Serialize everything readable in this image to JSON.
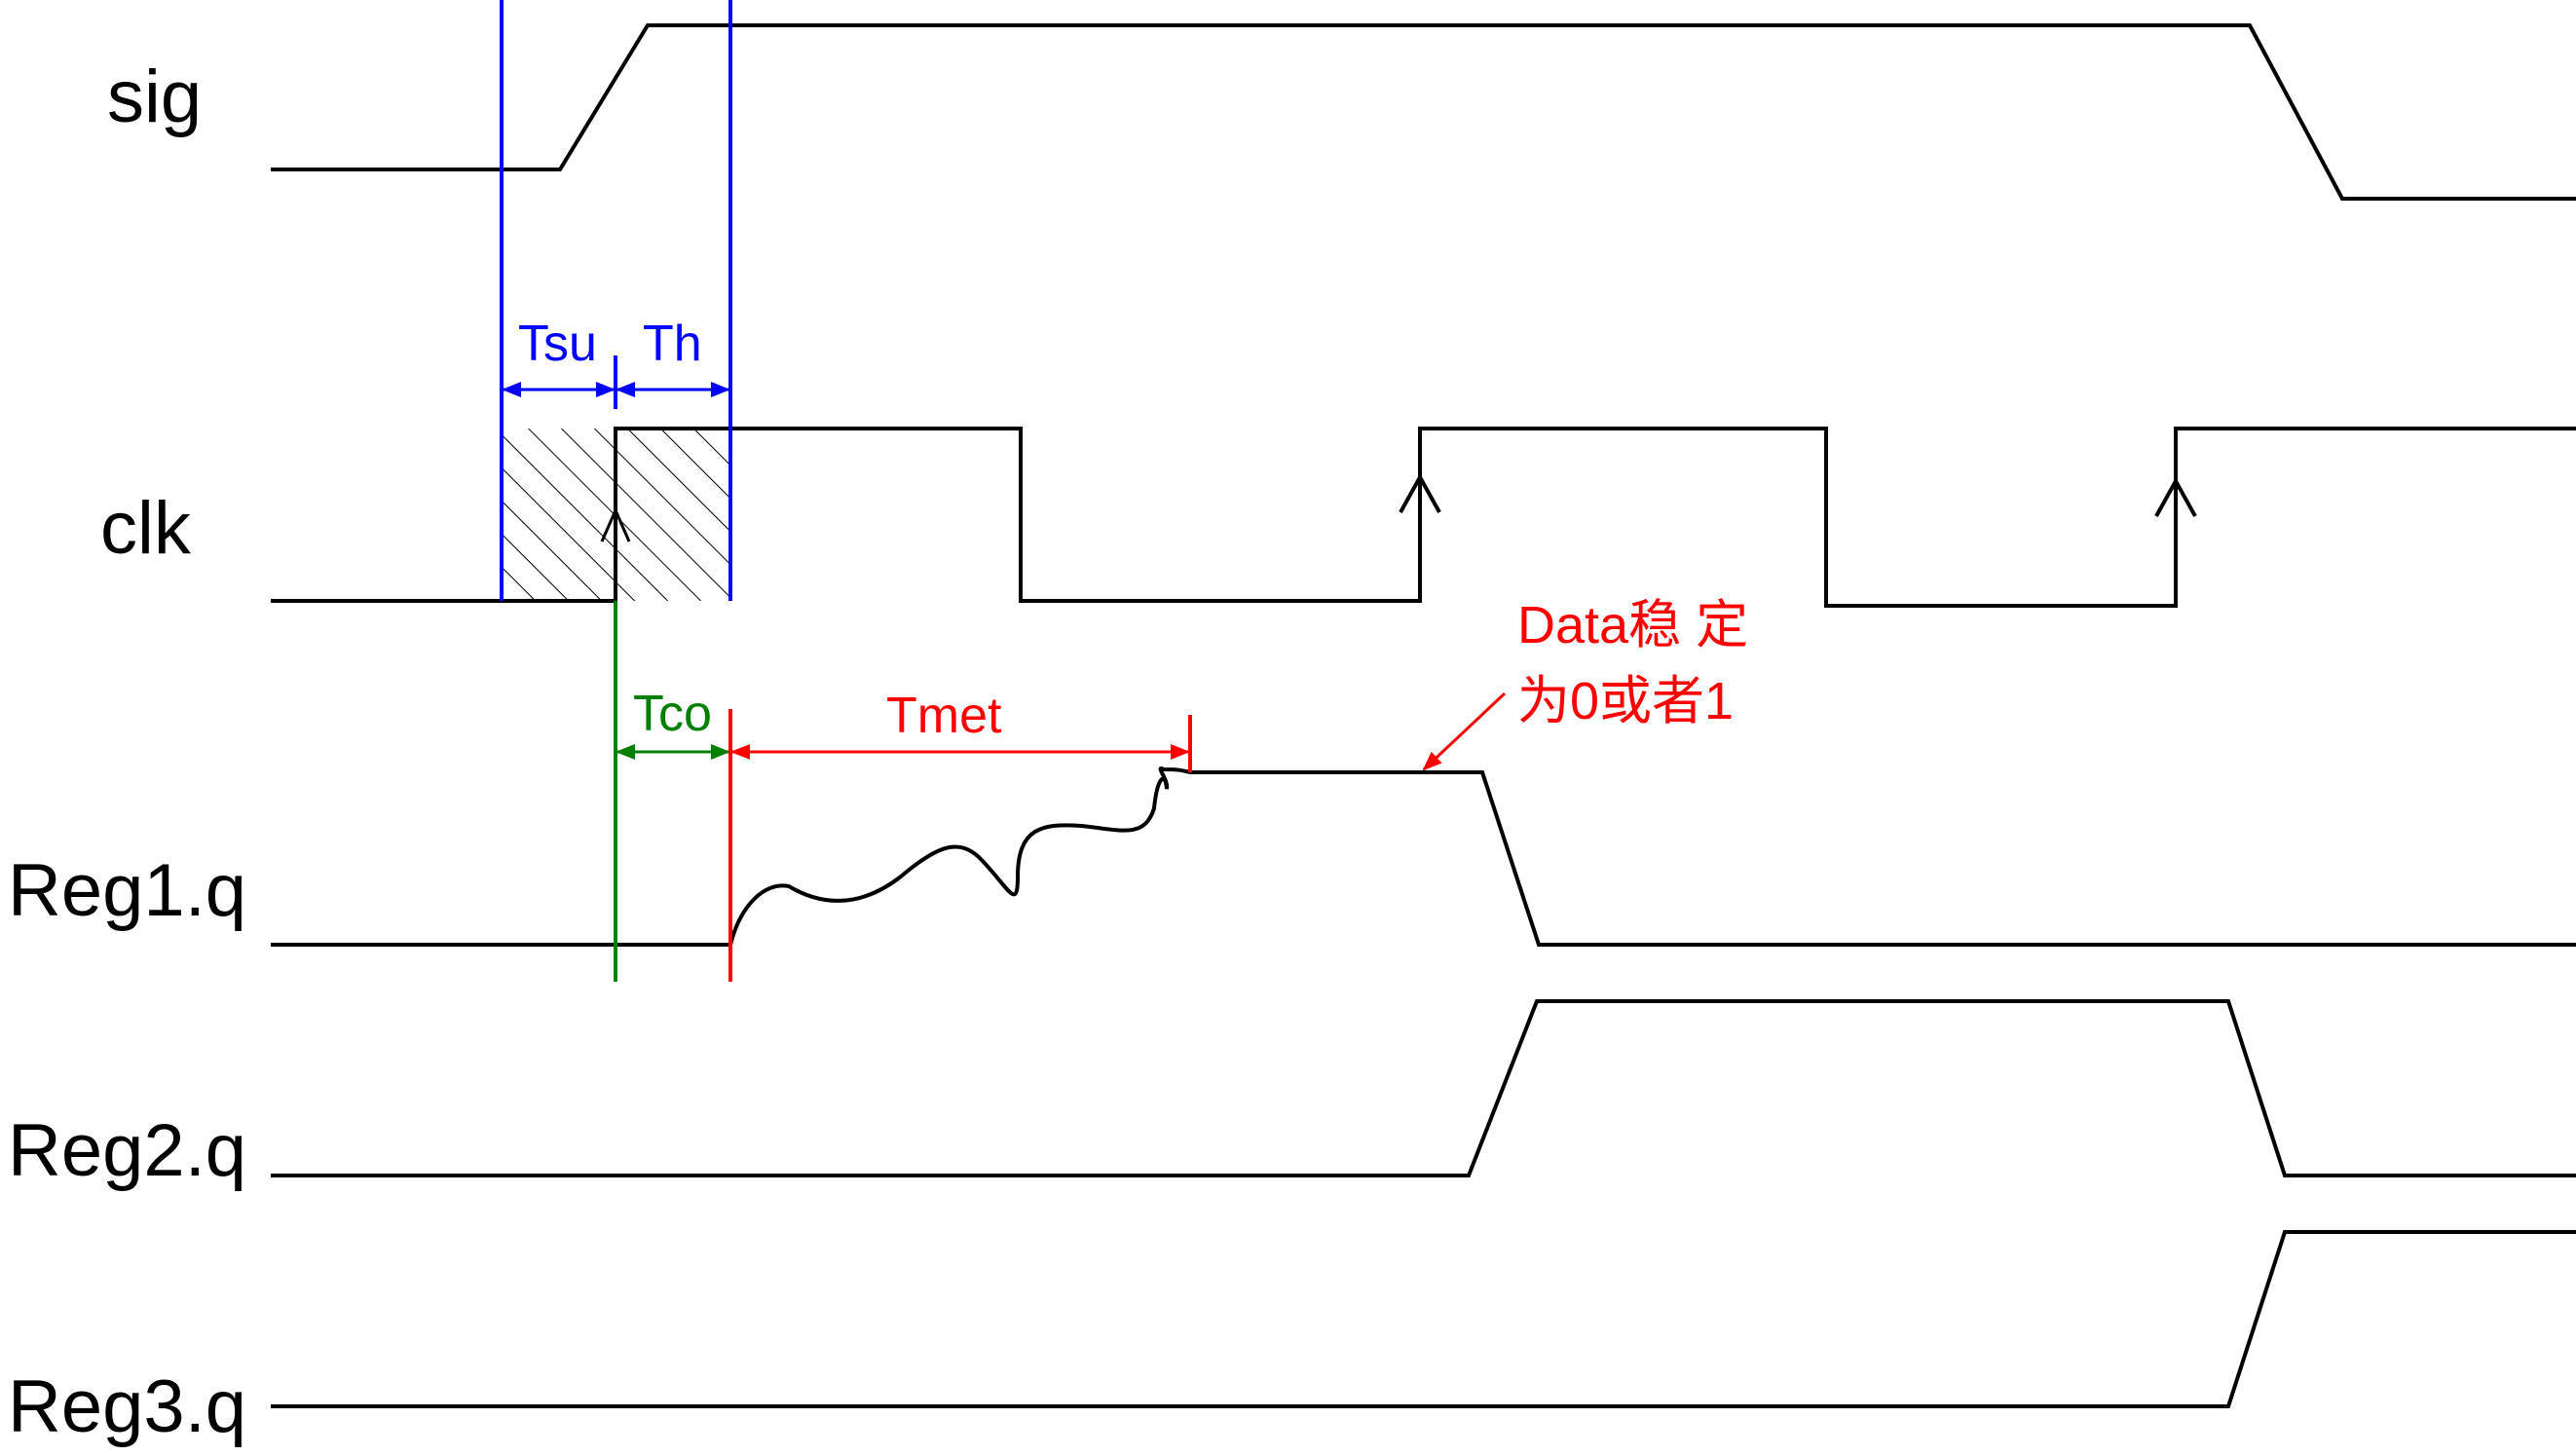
{
  "diagram": {
    "title": "",
    "signals": [
      {
        "id": "sig",
        "label": "sig"
      },
      {
        "id": "clk",
        "label": "clk"
      },
      {
        "id": "reg1",
        "label": "Reg1.q"
      },
      {
        "id": "reg2",
        "label": "Reg2.q"
      },
      {
        "id": "reg3",
        "label": "Reg3.q"
      }
    ],
    "annotations": {
      "tsu": "Tsu",
      "th": "Th",
      "tco": "Tco",
      "tmet": "Tmet",
      "note_line1": "Data稳 定",
      "note_line2": "为0或者1"
    },
    "colors": {
      "waveform": "#000000",
      "setup_hold": "#0000ff",
      "clock_to_output": "#008000",
      "metastability": "#ff0000"
    }
  }
}
